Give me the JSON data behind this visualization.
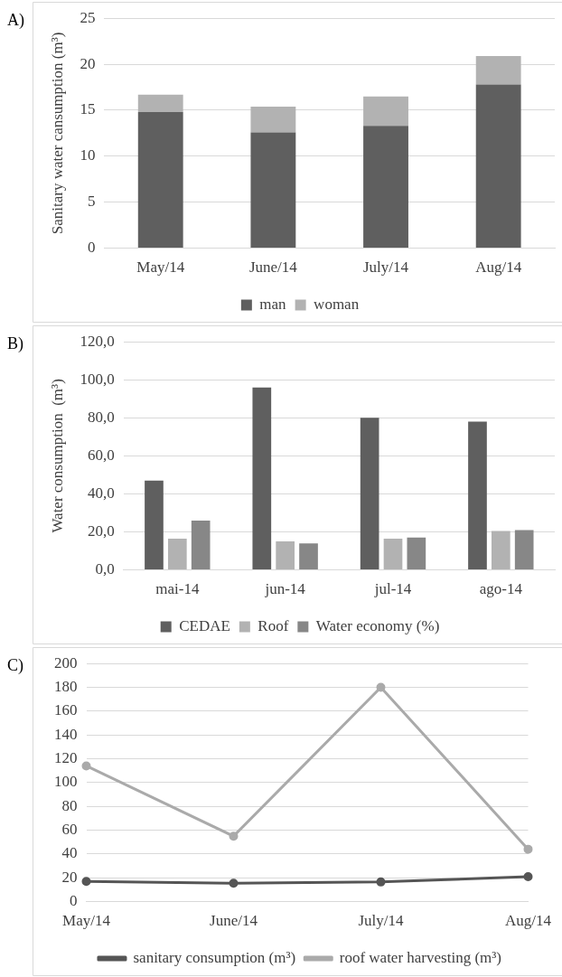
{
  "chart_data": [
    {
      "type": "bar",
      "annotations": [
        "A)"
      ],
      "ylabel": "Sanitary water cansumption (m³)",
      "categories": [
        "May/14",
        "June/14",
        "July/14",
        "Aug/14"
      ],
      "stacked": true,
      "series": [
        {
          "name": "man",
          "color": "#5f5f5f",
          "values": [
            14.8,
            12.6,
            13.3,
            17.8
          ]
        },
        {
          "name": "woman",
          "color": "#b2b2b2",
          "values": [
            1.9,
            2.8,
            3.2,
            3.1
          ]
        }
      ],
      "ylim": [
        0,
        25
      ],
      "yticks": [
        0,
        5,
        10,
        15,
        20,
        25
      ],
      "grid": "y",
      "legend": "bottom"
    },
    {
      "type": "bar",
      "annotations": [
        "B)"
      ],
      "ylabel": "Water consumption  (m³)",
      "categories": [
        "mai-14",
        "jun-14",
        "jul-14",
        "ago-14"
      ],
      "series": [
        {
          "name": "CEDAE",
          "color": "#5f5f5f",
          "values": [
            47,
            96,
            80,
            78
          ]
        },
        {
          "name": "Roof",
          "color": "#b2b2b2",
          "values": [
            16.5,
            15,
            16.5,
            20.5
          ]
        },
        {
          "name": "Water economy (%)",
          "color": "#878787",
          "values": [
            26,
            14,
            17,
            21
          ]
        }
      ],
      "ylim": [
        0,
        120
      ],
      "yticks": [
        {
          "value": 0,
          "label": "0,0"
        },
        {
          "value": 20,
          "label": "20,0"
        },
        {
          "value": 40,
          "label": "40,0"
        },
        {
          "value": 60,
          "label": "60,0"
        },
        {
          "value": 80,
          "label": "80,0"
        },
        {
          "value": 100,
          "label": "100,0"
        },
        {
          "value": 120,
          "label": "120,0"
        }
      ],
      "grid": "y",
      "legend": "bottom"
    },
    {
      "type": "line",
      "annotations": [
        "C)"
      ],
      "categories": [
        "May/14",
        "June/14",
        "July/14",
        "Aug/14"
      ],
      "series": [
        {
          "name": "sanitary consumption (m³)",
          "color": "#555555",
          "values": [
            17,
            15.5,
            16.5,
            21
          ]
        },
        {
          "name": "roof water harvesting (m³)",
          "color": "#aaaaaa",
          "values": [
            114,
            55,
            180,
            44
          ]
        }
      ],
      "ylim": [
        0,
        200
      ],
      "yticks": [
        0,
        20,
        40,
        60,
        80,
        100,
        120,
        140,
        160,
        180,
        200
      ],
      "grid": "y",
      "legend": "bottom",
      "marker": "circle"
    }
  ]
}
